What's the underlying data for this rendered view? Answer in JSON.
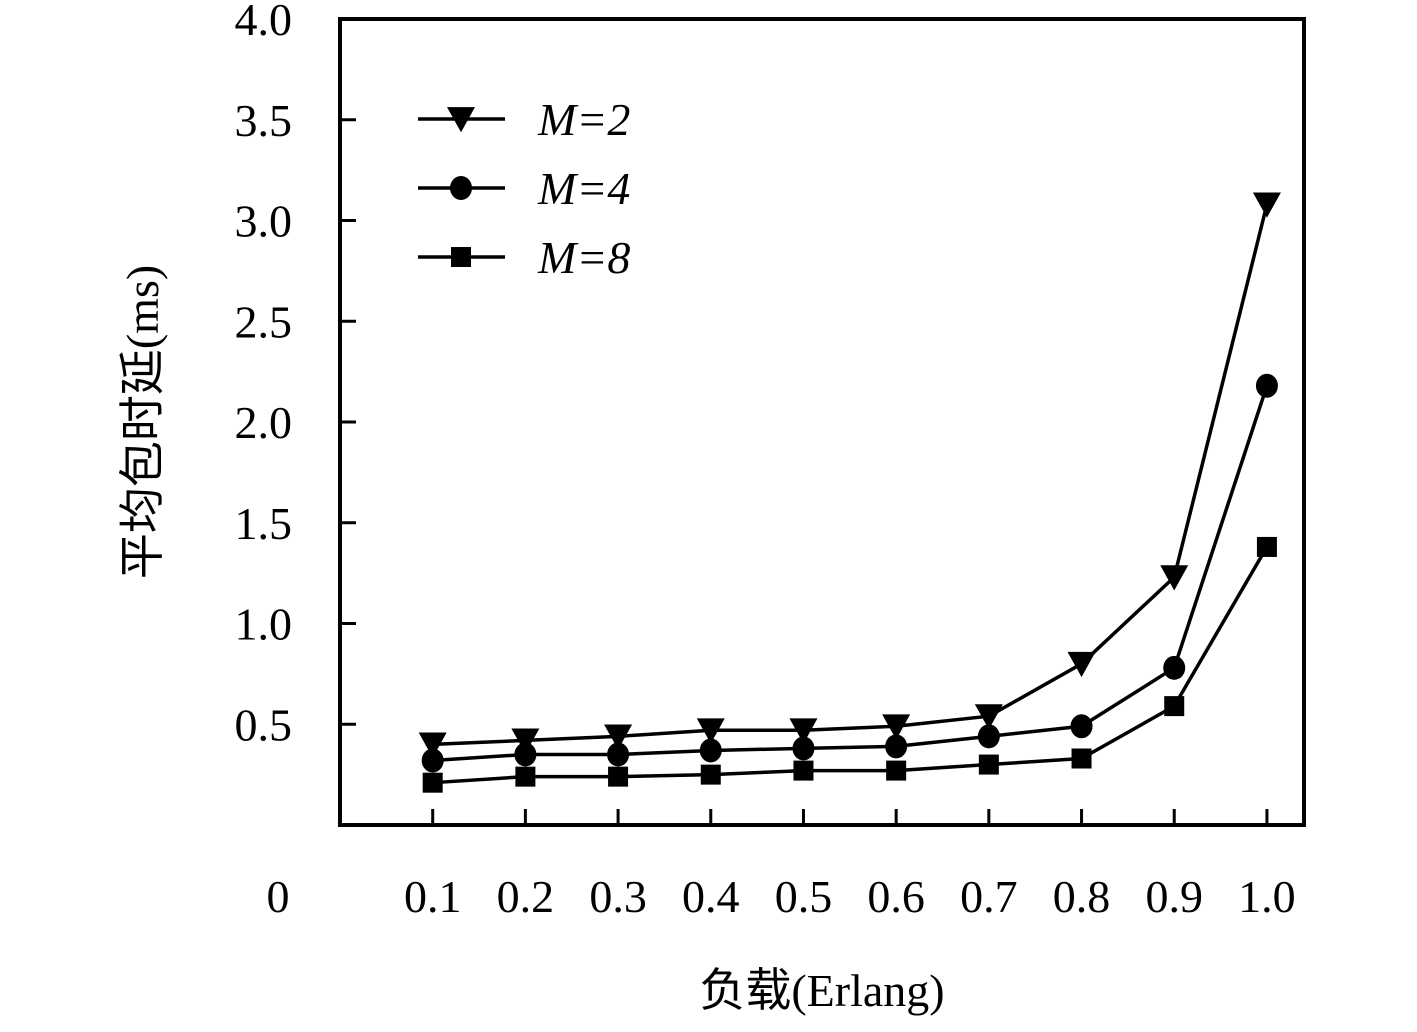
{
  "chart_data": {
    "type": "line",
    "title": "",
    "xlabel": "负载(Erlang)",
    "ylabel": "平均包时延(ms)",
    "x": [
      0.1,
      0.2,
      0.3,
      0.4,
      0.5,
      0.6,
      0.7,
      0.8,
      0.9,
      1.0
    ],
    "x_tick_labels": [
      "0.1",
      "0.2",
      "0.3",
      "0.4",
      "0.5",
      "0.6",
      "0.7",
      "0.8",
      "0.9",
      "1.0"
    ],
    "x_origin_label": "0",
    "y_ticks": [
      0.5,
      1.0,
      1.5,
      2.0,
      2.5,
      3.0,
      3.5,
      4.0
    ],
    "y_tick_labels": [
      "0.5",
      "1.0",
      "1.5",
      "2.0",
      "2.5",
      "3.0",
      "3.5",
      "4.0"
    ],
    "ylim": [
      0,
      4.0
    ],
    "xlim": [
      0,
      1.04
    ],
    "grid": false,
    "legend_position": "top-left",
    "series": [
      {
        "name": "M=2",
        "marker": "triangle-down",
        "values": [
          0.4,
          0.42,
          0.44,
          0.47,
          0.47,
          0.49,
          0.54,
          0.8,
          1.23,
          3.08
        ]
      },
      {
        "name": "M=4",
        "marker": "circle",
        "values": [
          0.32,
          0.35,
          0.35,
          0.37,
          0.38,
          0.39,
          0.44,
          0.49,
          0.78,
          2.18
        ]
      },
      {
        "name": "M=8",
        "marker": "square",
        "values": [
          0.21,
          0.24,
          0.24,
          0.25,
          0.27,
          0.27,
          0.3,
          0.33,
          0.59,
          1.38
        ]
      }
    ],
    "colors": {
      "line": "#000000",
      "background": "#ffffff"
    }
  }
}
